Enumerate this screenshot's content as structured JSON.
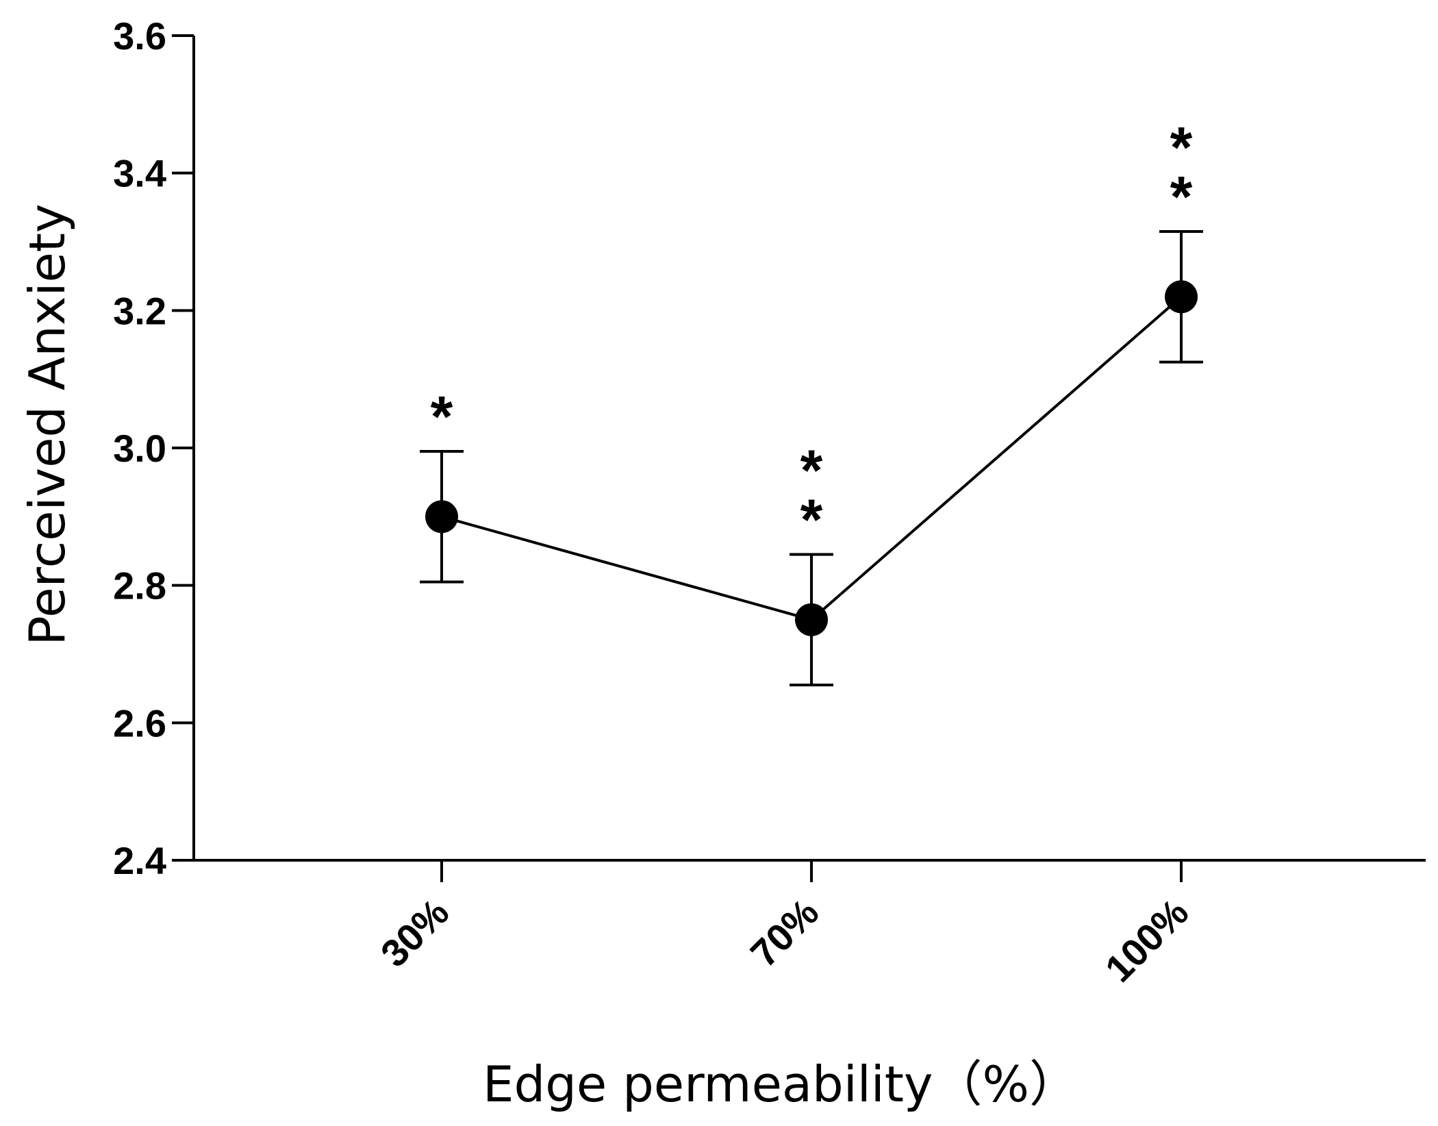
{
  "chart_data": {
    "type": "line",
    "title": "",
    "xlabel": "Edge permeability（%）",
    "ylabel": "Perceived Anxiety",
    "categories": [
      "30%",
      "70%",
      "100%"
    ],
    "series": [
      {
        "name": "Perceived Anxiety",
        "values": [
          2.9,
          2.75,
          3.22
        ],
        "error": [
          0.095,
          0.095,
          0.095
        ],
        "significance": [
          "*",
          "**",
          "**"
        ]
      }
    ],
    "ylim": [
      2.4,
      3.6
    ],
    "yticks": [
      2.4,
      2.6,
      2.8,
      3.0,
      3.2,
      3.4,
      3.6
    ],
    "ytick_labels": [
      "2.4",
      "2.6",
      "2.8",
      "3.0",
      "3.2",
      "3.4",
      "3.6"
    ],
    "grid": false,
    "colors": {
      "line": "#000000",
      "marker": "#000000"
    }
  }
}
